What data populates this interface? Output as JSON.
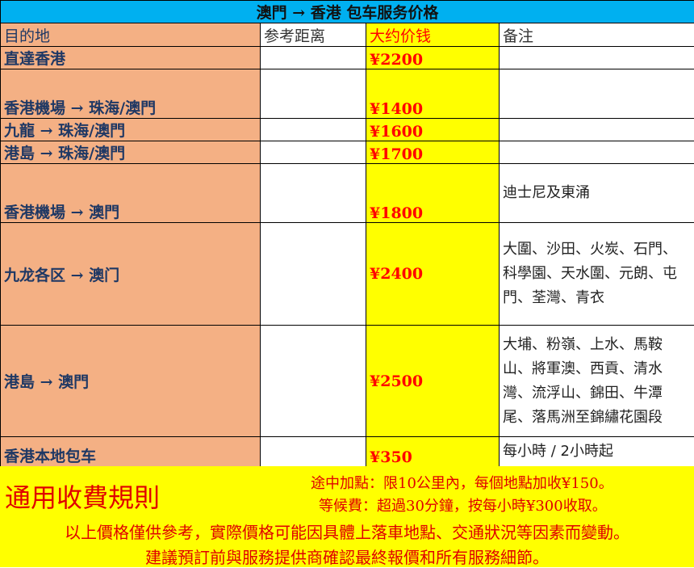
{
  "title": "澳門 → 香港 包车服务价格",
  "headers": {
    "destination": "目的地",
    "distance": "参考距离",
    "price": "大约价钱",
    "notes": "备注"
  },
  "rows": [
    {
      "destination": "直達香港",
      "distance": "",
      "price": "¥2200",
      "notes": ""
    },
    {
      "destination": "香港機場 → 珠海/澳門",
      "distance": "",
      "price": "¥1400",
      "notes": ""
    },
    {
      "destination": "九龍 → 珠海/澳門",
      "distance": "",
      "price": "¥1600",
      "notes": ""
    },
    {
      "destination": "港島 → 珠海/澳門",
      "distance": "",
      "price": "¥1700",
      "notes": ""
    },
    {
      "destination": "香港機場 → 澳門",
      "distance": "",
      "price": "¥1800",
      "notes": "迪士尼及東涌"
    },
    {
      "destination": "九龙各区 → 澳门",
      "distance": "",
      "price": "¥2400",
      "notes": "大圍、沙田、火炭、石門、科學園、天水圍、元朗、屯門、荃灣、青衣"
    },
    {
      "destination": "港島 → 澳門",
      "distance": "",
      "price": "¥2500",
      "notes": "大埔、粉嶺、上水、馬鞍山、將軍澳、西貢、清水灣、流浮山、錦田、牛潭尾、落馬洲至錦繡花園段"
    },
    {
      "destination": "香港本地包车",
      "distance": "",
      "price": "¥350",
      "notes": "每小時 / 2小時起"
    }
  ],
  "footer": {
    "heading": "通用收費規則",
    "extra_stop": "途中加點：限10公里內，每個地點加收¥150。",
    "waiting": "等候費：超過30分鐘，按每小時¥300收取。",
    "disclaimer": "以上價格僅供參考，實際價格可能因具體上落車地點、交通狀況等因素而變動。",
    "advice": "建議預訂前與服務提供商確認最終報價和所有服務細節。"
  },
  "colors": {
    "title_bg": "#00B0F0",
    "destination_bg": "#F4B084",
    "price_bg": "#FFFF00",
    "price_text": "#FF0000",
    "footer_bg": "#FFFF00",
    "footer_text": "#E00000"
  }
}
